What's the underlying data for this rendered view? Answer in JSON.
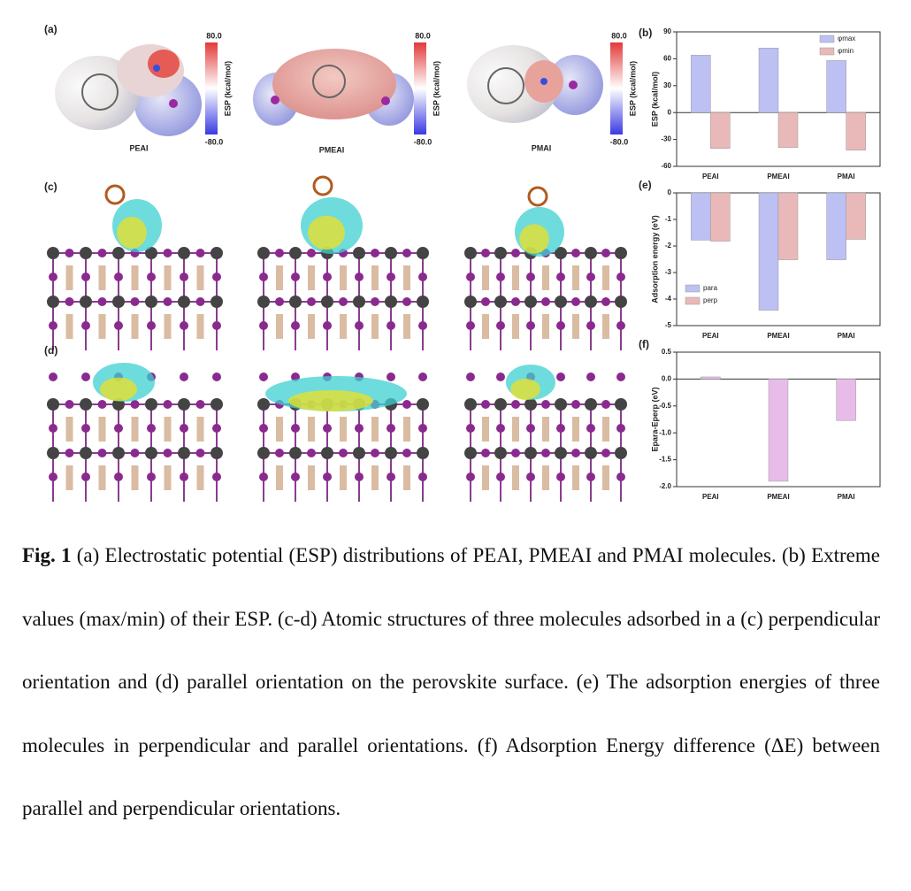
{
  "panel_labels": [
    "(a)",
    "(b)",
    "(c)",
    "(d)",
    "(e)",
    "(f)"
  ],
  "panel_a": {
    "molecules": [
      "PEAI",
      "PMEAI",
      "PMAI"
    ],
    "colorbar": {
      "max": "80.0",
      "min": "-80.0",
      "label": "ESP (kcal/mol)"
    }
  },
  "chart_data": [
    {
      "type": "bar",
      "categories": [
        "PEAI",
        "PMEAI",
        "PMAI"
      ],
      "ylabel": "ESP (kcal/mol)",
      "series": [
        {
          "name": "φmax",
          "color": "#bcc0f2",
          "values": [
            64,
            72,
            58
          ]
        },
        {
          "name": "φmin",
          "color": "#e9b9b9",
          "values": [
            -40,
            -39,
            -42
          ]
        }
      ],
      "ylim": [
        -60,
        90
      ],
      "yticks": [
        -60,
        -30,
        0,
        30,
        60,
        90
      ],
      "legend": "upper right"
    },
    {
      "type": "bar",
      "categories": [
        "PEAI",
        "PMEAI",
        "PMAI"
      ],
      "ylabel": "Adsorption energy (eV)",
      "series": [
        {
          "name": "para",
          "color": "#bcc0f2",
          "values": [
            -1.78,
            -4.42,
            -2.52
          ]
        },
        {
          "name": "perp",
          "color": "#e9b9b9",
          "values": [
            -1.82,
            -2.52,
            -1.75
          ]
        }
      ],
      "ylim": [
        -5,
        0
      ],
      "yticks": [
        -5,
        -4,
        -3,
        -2,
        -1,
        0
      ],
      "legend": "lower left"
    },
    {
      "type": "bar",
      "categories": [
        "PEAI",
        "PMEAI",
        "PMAI"
      ],
      "ylabel": "Epara-Eperp (eV)",
      "values": [
        0.04,
        -1.9,
        -0.77
      ],
      "color": "#e7bce9",
      "ylim": [
        -2.0,
        0.5
      ],
      "yticks": [
        0.5,
        {
          "value": 0,
          "label": "0.0"
        },
        -0.5,
        {
          "value": -1,
          "label": "-1.0"
        },
        -1.5,
        {
          "value": -2,
          "label": "-2.0"
        }
      ]
    }
  ],
  "caption": {
    "lead": "Fig. 1",
    "text": "(a) Electrostatic potential (ESP) distributions of PEAI, PMEAI and PMAI molecules. (b) Extreme values (max/min) of their ESP. (c-d) Atomic structures of three molecules adsorbed in a (c) perpendicular orientation and (d) parallel orientation on the perovskite surface. (e) The adsorption energies of three molecules in perpendicular and parallel orientations. (f) Adsorption Energy difference (ΔE) between parallel and perpendicular orientations."
  }
}
